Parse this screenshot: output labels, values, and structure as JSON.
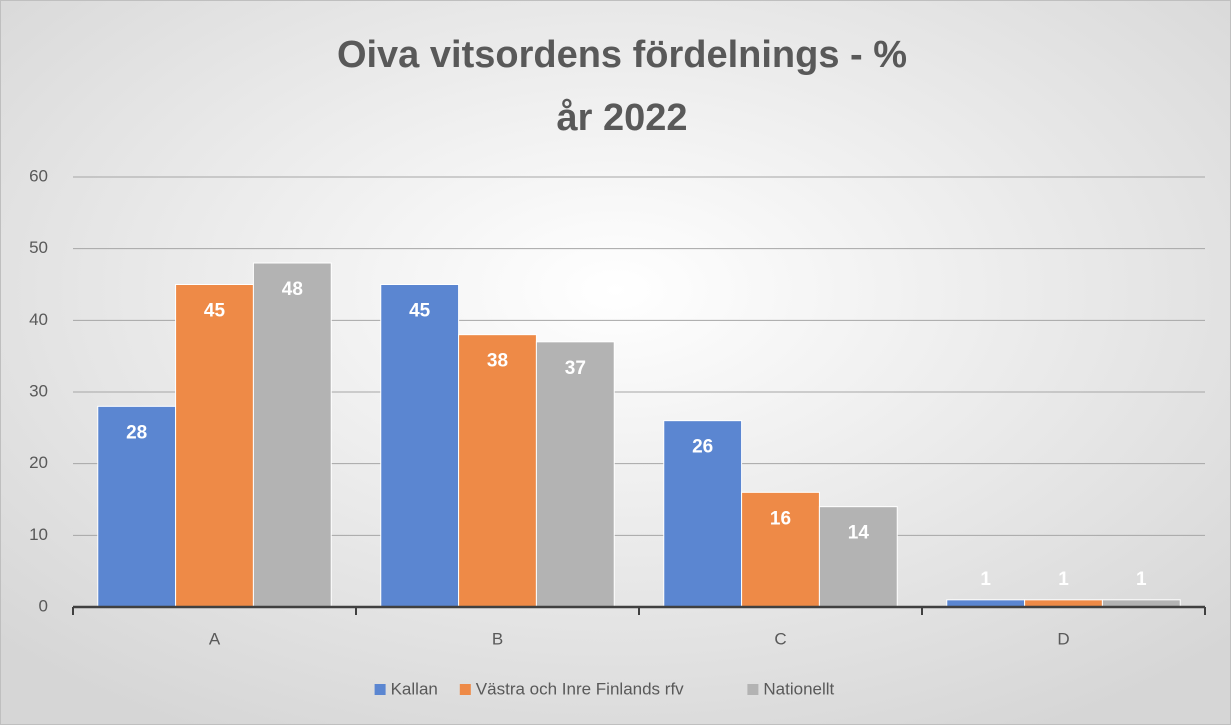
{
  "chart_data": {
    "type": "bar",
    "title": [
      "Oiva vitsordens fördelnings - %",
      "år 2022"
    ],
    "categories": [
      "A",
      "B",
      "C",
      "D"
    ],
    "series": [
      {
        "name": "Kallan",
        "color": "#5b86d1",
        "values": [
          28,
          45,
          26,
          1
        ]
      },
      {
        "name": "Västra och Inre Finlands rfv",
        "color": "#ee8a47",
        "values": [
          45,
          38,
          16,
          1
        ]
      },
      {
        "name": "Nationellt",
        "color": "#b3b3b3",
        "values": [
          48,
          37,
          14,
          1
        ]
      }
    ],
    "ylim": [
      0,
      60
    ],
    "yticks": [
      0,
      10,
      20,
      30,
      40,
      50,
      60
    ],
    "grid": true,
    "legend": "bottom"
  }
}
